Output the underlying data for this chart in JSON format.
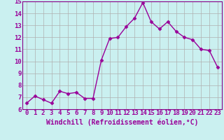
{
  "x": [
    0,
    1,
    2,
    3,
    4,
    5,
    6,
    7,
    8,
    9,
    10,
    11,
    12,
    13,
    14,
    15,
    16,
    17,
    18,
    19,
    20,
    21,
    22,
    23
  ],
  "y": [
    6.5,
    7.1,
    6.8,
    6.5,
    7.5,
    7.3,
    7.4,
    6.9,
    6.9,
    10.1,
    11.9,
    12.0,
    12.9,
    13.6,
    14.9,
    13.3,
    12.7,
    13.3,
    12.5,
    12.0,
    11.8,
    11.0,
    10.9,
    9.5
  ],
  "line_color": "#990099",
  "bg_color": "#caf0f0",
  "grid_color": "#b0b0b0",
  "xlabel": "Windchill (Refroidissement éolien,°C)",
  "ylim": [
    6,
    15
  ],
  "xlim_min": -0.5,
  "xlim_max": 23.5,
  "yticks": [
    6,
    7,
    8,
    9,
    10,
    11,
    12,
    13,
    14,
    15
  ],
  "xticks": [
    0,
    1,
    2,
    3,
    4,
    5,
    6,
    7,
    8,
    9,
    10,
    11,
    12,
    13,
    14,
    15,
    16,
    17,
    18,
    19,
    20,
    21,
    22,
    23
  ],
  "marker": "D",
  "markersize": 2.5,
  "linewidth": 1.0,
  "xlabel_fontsize": 7,
  "tick_fontsize": 6.5,
  "spine_color": "#880088"
}
